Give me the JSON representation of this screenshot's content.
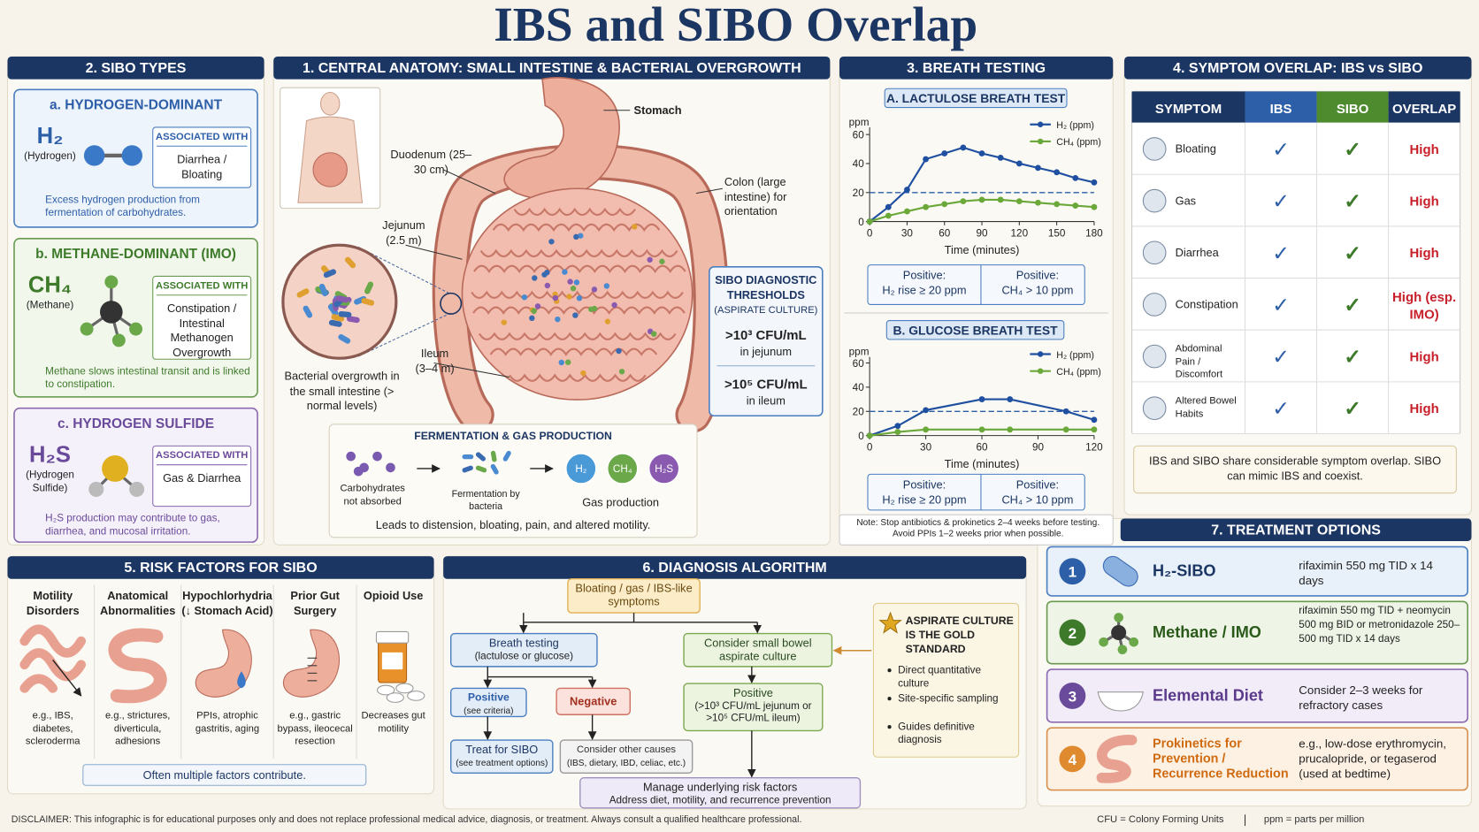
{
  "title": "IBS and SIBO Overlap",
  "sibo_types": {
    "heading": "2. SIBO TYPES",
    "associated_label": "ASSOCIATED WITH",
    "types": [
      {
        "name": "a. HYDROGEN-DOMINANT",
        "formula": "H₂",
        "formula_name": "(Hydrogen)",
        "associated": "Diarrhea / Bloating",
        "description": "Excess hydrogen production from fermentation of carbohydrates."
      },
      {
        "name": "b. METHANE-DOMINANT (IMO)",
        "formula": "CH₄",
        "formula_name": "(Methane)",
        "associated": "Constipation / Intestinal Methanogen Overgrowth",
        "description": "Methane slows intestinal transit and is linked to constipation."
      },
      {
        "name": "c. HYDROGEN SULFIDE",
        "formula": "H₂S",
        "formula_name": "(Hydrogen Sulfide)",
        "associated": "Gas & Diarrhea",
        "description": "H₂S production may contribute to gas, diarrhea, and mucosal irritation."
      }
    ]
  },
  "anatomy": {
    "heading": "1. CENTRAL ANATOMY: SMALL INTESTINE & BACTERIAL OVERGROWTH",
    "labels": [
      "Stomach",
      "Duodenum (25–30 cm)",
      "Colon (large intestine) for orientation",
      "Jejunum (2.5 m)",
      "Ileum (3–4 m)",
      "Bacterial overgrowth in the small intestine (> normal levels)"
    ],
    "thresholds": {
      "title": "SIBO DIAGNOSTIC THRESHOLDS",
      "subtitle": "(ASPIRATE CULTURE)",
      "items": [
        {
          "value": ">10³ CFU/mL",
          "site": "in jejunum"
        },
        {
          "value": ">10⁵ CFU/mL",
          "site": "in ileum"
        }
      ]
    },
    "fermentation": {
      "title": "FERMENTATION & GAS PRODUCTION",
      "steps": [
        "Carbohydrates not absorbed",
        "Fermentation by bacteria",
        "Gas production"
      ],
      "gases": [
        "H₂",
        "CH₄",
        "H₂S"
      ],
      "footer": "Leads to distension, bloating, pain, and altered motility."
    }
  },
  "breath_testing": {
    "heading": "3. BREATH TESTING",
    "tests": [
      {
        "title": "A. LACTULOSE BREATH TEST",
        "chart": {
          "type": "line",
          "y_label": "ppm",
          "x_label": "Time (minutes)",
          "x": [
            0,
            15,
            30,
            45,
            60,
            75,
            90,
            105,
            120,
            135,
            150,
            165,
            180
          ],
          "series": [
            {
              "name": "H₂ (ppm)",
              "color": "#1f4fa0",
              "values": [
                0,
                10,
                22,
                43,
                47,
                51,
                47,
                44,
                40,
                37,
                34,
                30,
                27
              ]
            },
            {
              "name": "CH₄ (ppm)",
              "color": "#6aa83a",
              "values": [
                0,
                4,
                7,
                10,
                12,
                14,
                15,
                15,
                14,
                13,
                12,
                11,
                10
              ]
            }
          ],
          "threshold": 20,
          "xlim": [
            0,
            180
          ],
          "xticks": [
            0,
            30,
            60,
            90,
            120,
            150,
            180
          ],
          "ylim": [
            0,
            65
          ],
          "yticks": [
            0,
            20,
            40,
            60
          ]
        },
        "criteria": [
          {
            "label": "Positive:",
            "rule": "H₂ rise ≥ 20 ppm"
          },
          {
            "label": "Positive:",
            "rule": "CH₄ > 10 ppm"
          }
        ]
      },
      {
        "title": "B. GLUCOSE BREATH TEST",
        "chart": {
          "type": "line",
          "y_label": "ppm",
          "x_label": "Time (minutes)",
          "x": [
            0,
            15,
            30,
            60,
            75,
            105,
            120
          ],
          "series": [
            {
              "name": "H₂ (ppm)",
              "color": "#1f4fa0",
              "values": [
                0,
                8,
                21,
                30,
                30,
                20,
                13
              ]
            },
            {
              "name": "CH₄ (ppm)",
              "color": "#6aa83a",
              "values": [
                0,
                3,
                5,
                5,
                5,
                5,
                5
              ]
            }
          ],
          "threshold": 20,
          "xlim": [
            0,
            120
          ],
          "xticks": [
            0,
            30,
            60,
            90,
            120
          ],
          "ylim": [
            0,
            65
          ],
          "yticks": [
            0,
            20,
            40,
            60
          ]
        },
        "criteria": [
          {
            "label": "Positive:",
            "rule": "H₂ rise ≥ 20 ppm"
          },
          {
            "label": "Positive:",
            "rule": "CH₄ > 10 ppm"
          }
        ]
      }
    ],
    "note": "Note: Stop antibiotics & prokinetics 2–4 weeks before testing. Avoid PPIs 1–2 weeks prior when possible."
  },
  "symptom_overlap": {
    "heading": "4. SYMPTOM OVERLAP: IBS vs SIBO",
    "columns": [
      "SYMPTOM",
      "IBS",
      "SIBO",
      "OVERLAP"
    ],
    "rows": [
      {
        "symptom": "Bloating",
        "ibs": "✓",
        "sibo": "✓",
        "overlap": "High"
      },
      {
        "symptom": "Gas",
        "ibs": "✓",
        "sibo": "✓",
        "overlap": "High"
      },
      {
        "symptom": "Diarrhea",
        "ibs": "✓",
        "sibo": "✓",
        "overlap": "High"
      },
      {
        "symptom": "Constipation",
        "ibs": "✓",
        "sibo": "✓",
        "overlap": "High (esp. IMO)"
      },
      {
        "symptom": "Abdominal Pain / Discomfort",
        "ibs": "✓",
        "sibo": "✓",
        "overlap": "High"
      },
      {
        "symptom": "Altered Bowel Habits",
        "ibs": "✓",
        "sibo": "✓",
        "overlap": "High"
      }
    ],
    "footer": "IBS and SIBO share considerable symptom overlap. SIBO can mimic IBS and coexist."
  },
  "risk_factors": {
    "heading": "5. RISK FACTORS FOR SIBO",
    "items": [
      {
        "name": "Motility Disorders",
        "examples": "e.g., IBS, diabetes, scleroderma"
      },
      {
        "name": "Anatomical Abnormalities",
        "examples": "e.g., strictures, diverticula, adhesions"
      },
      {
        "name": "Hypochlorhydria (↓ Stomach Acid)",
        "examples": "PPIs, atrophic gastritis, aging"
      },
      {
        "name": "Prior Gut Surgery",
        "examples": "e.g., gastric bypass, ileocecal resection"
      },
      {
        "name": "Opioid Use",
        "examples": "Decreases gut motility"
      }
    ],
    "footer": "Often multiple factors contribute."
  },
  "diagnosis": {
    "heading": "6. DIAGNOSIS ALGORITHM",
    "nodes": [
      {
        "label": "Bloating / gas / IBS-like symptoms"
      },
      {
        "label": "Breath testing",
        "note": "(lactulose or glucose)"
      },
      {
        "label": "Consider small bowel aspirate culture"
      },
      {
        "label": "Positive",
        "note": "(see criteria)"
      },
      {
        "label": "Negative"
      },
      {
        "label": "Positive",
        "note": "(>10³ CFU/mL jejunum or >10⁵ CFU/mL ileum)"
      },
      {
        "label": "Treat for SIBO",
        "note": "(see treatment options)"
      },
      {
        "label": "Consider other causes",
        "note": "(IBS, dietary, IBD, celiac, etc.)"
      },
      {
        "label": "Manage underlying risk factors",
        "note": "Address diet, motility, and recurrence prevention"
      }
    ],
    "gold_standard": {
      "title": "ASPIRATE CULTURE IS THE GOLD STANDARD",
      "points": [
        "Direct quantitative culture",
        "Site-specific sampling",
        "Guides definitive diagnosis"
      ]
    }
  },
  "treatment": {
    "heading": "7. TREATMENT OPTIONS",
    "options": [
      {
        "number": "1",
        "name": "H₂-SIBO",
        "detail": "rifaximin 550 mg TID x 14 days"
      },
      {
        "number": "2",
        "name": "Methane / IMO",
        "detail": "rifaximin 550 mg TID + neomycin 500 mg BID or metronidazole 250–500 mg TID x 14 days"
      },
      {
        "number": "3",
        "name": "Elemental Diet",
        "detail": "Consider 2–3 weeks for refractory cases"
      },
      {
        "number": "4",
        "name": "Prokinetics for Prevention / Recurrence Reduction",
        "detail": "e.g., low-dose erythromycin, prucalopride, or tegaserod (used at bedtime)"
      }
    ]
  },
  "footer": {
    "disclaimer": "DISCLAIMER: This infographic is for educational purposes only and does not replace professional medical advice, diagnosis, or treatment. Always consult a qualified healthcare professional.",
    "abbreviations": [
      "CFU = Colony Forming Units",
      "ppm = parts per million"
    ]
  }
}
